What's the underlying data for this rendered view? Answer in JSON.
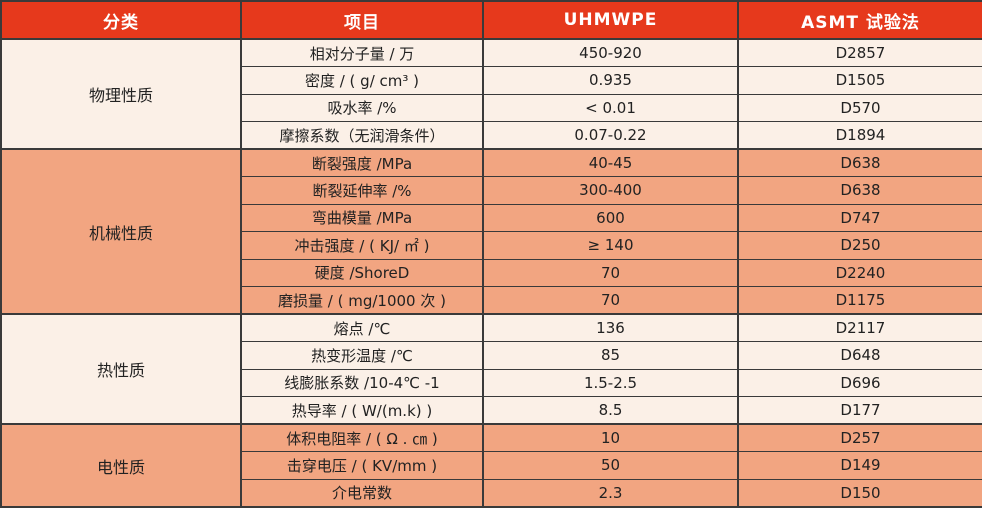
{
  "colors": {
    "header_bg": "#E6391C",
    "header_text": "#FFFFFF",
    "cream_bg": "#FBF0E7",
    "salmon_bg": "#F2A581",
    "border": "#3A3A3A",
    "text": "#222222"
  },
  "header": {
    "category": "分类",
    "item": "项目",
    "material": "UHMWPE",
    "method": "ASMT 试验法"
  },
  "sections": [
    {
      "category": "物理性质",
      "tone": "cream",
      "rows": [
        {
          "item": "相对分子量 / 万",
          "value": "450-920",
          "method": "D2857"
        },
        {
          "item": "密度 / ( g/ cm³ )",
          "value": "0.935",
          "method": "D1505"
        },
        {
          "item": "吸水率 /%",
          "value": "< 0.01",
          "method": "D570"
        },
        {
          "item": "摩擦系数（无润滑条件）",
          "value": "0.07-0.22",
          "method": "D1894"
        }
      ]
    },
    {
      "category": "机械性质",
      "tone": "salmon",
      "rows": [
        {
          "item": "断裂强度 /MPa",
          "value": "40-45",
          "method": "D638"
        },
        {
          "item": "断裂延伸率 /%",
          "value": "300-400",
          "method": "D638"
        },
        {
          "item": "弯曲模量 /MPa",
          "value": "600",
          "method": "D747"
        },
        {
          "item": "冲击强度 / ( KJ/ ㎡ )",
          "value": "≥ 140",
          "method": "D250"
        },
        {
          "item": "硬度 /ShoreD",
          "value": "70",
          "method": "D2240"
        },
        {
          "item": "磨损量 / ( mg/1000 次 )",
          "value": "70",
          "method": "D1175"
        }
      ]
    },
    {
      "category": "热性质",
      "tone": "cream",
      "rows": [
        {
          "item": "熔点 /℃",
          "value": "136",
          "method": "D2117"
        },
        {
          "item": "热变形温度 /℃",
          "value": "85",
          "method": "D648"
        },
        {
          "item": "线膨胀系数 /10-4℃ -1",
          "value": "1.5-2.5",
          "method": "D696"
        },
        {
          "item": "热导率 / ( W/(m.k) )",
          "value": "8.5",
          "method": "D177"
        }
      ]
    },
    {
      "category": "电性质",
      "tone": "salmon",
      "rows": [
        {
          "item": "体积电阻率 / ( Ω . ㎝ )",
          "value": "10",
          "method": "D257"
        },
        {
          "item": "击穿电压 / ( KV/mm )",
          "value": "50",
          "method": "D149"
        },
        {
          "item": "介电常数",
          "value": "2.3",
          "method": "D150"
        }
      ]
    }
  ]
}
